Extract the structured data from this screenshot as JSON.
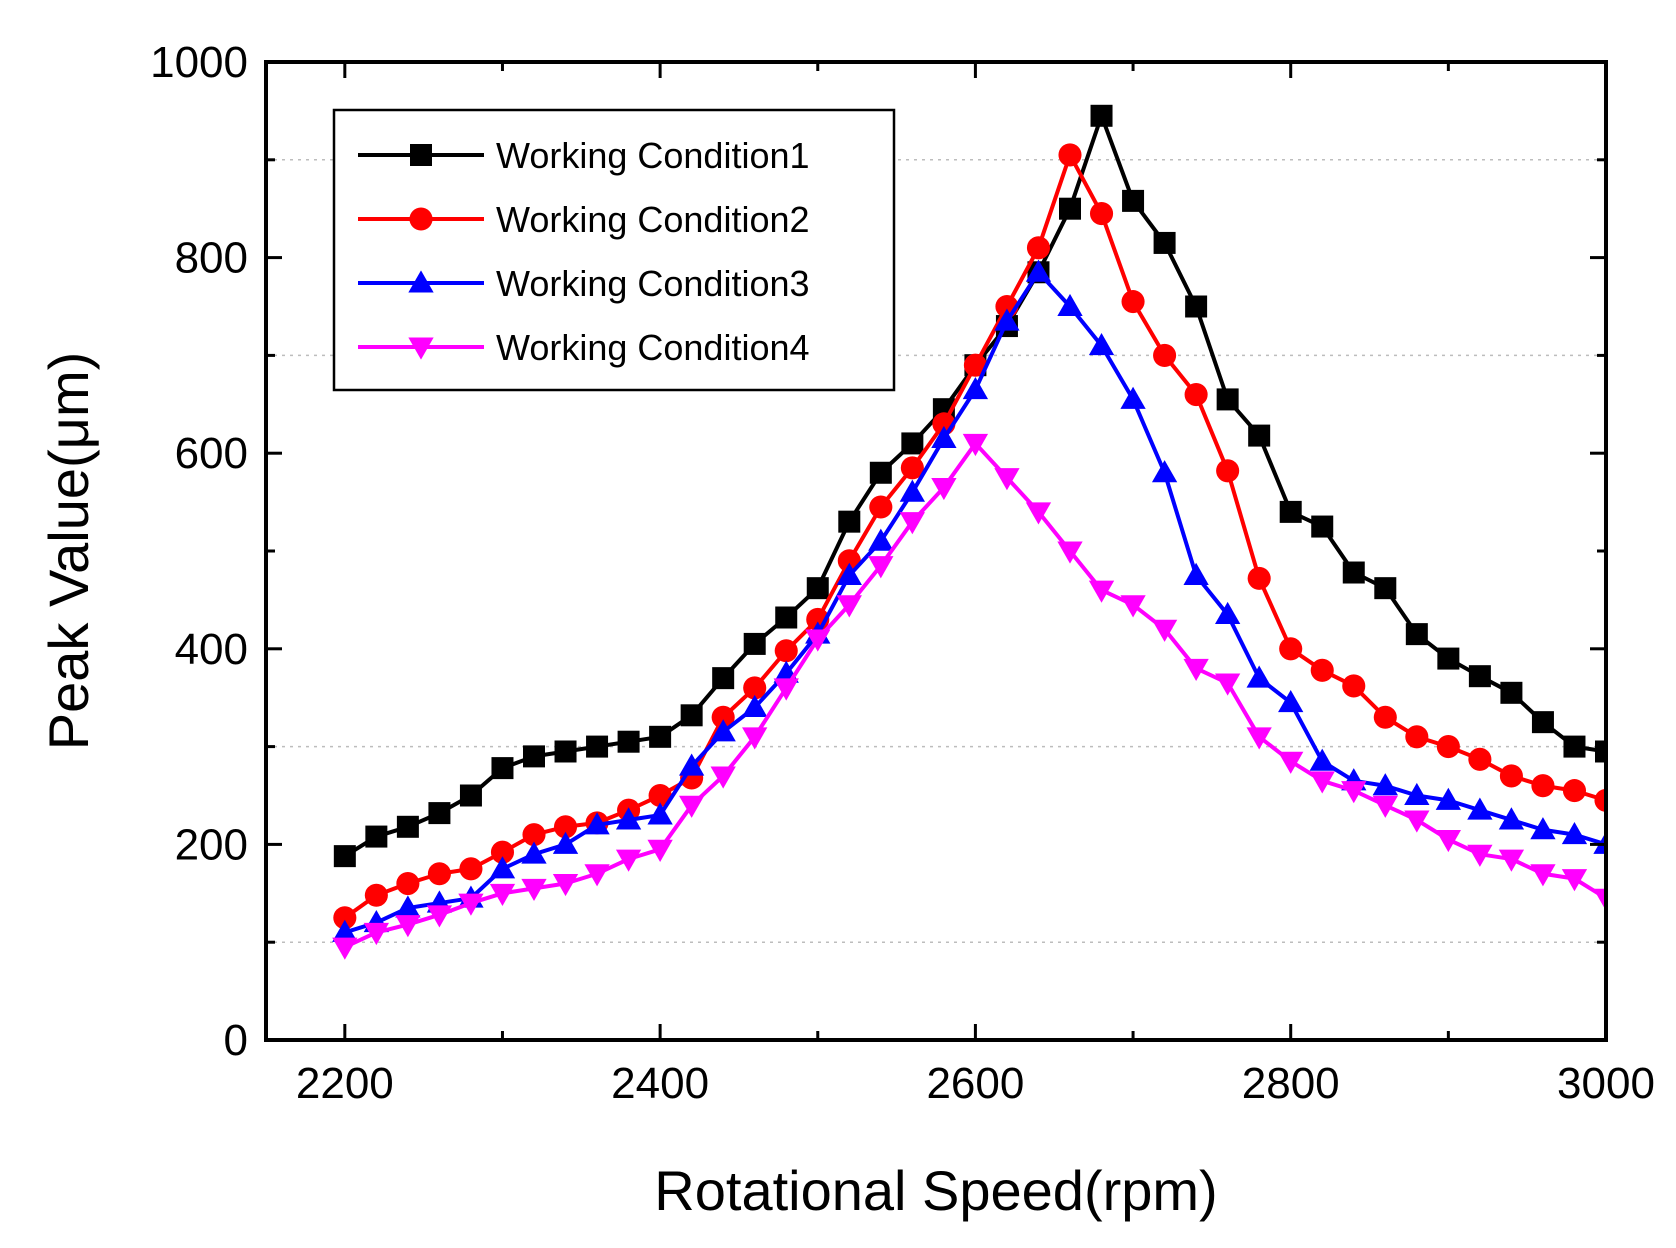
{
  "chart_data": {
    "type": "line",
    "title": "",
    "xlabel": "Rotational Speed(rpm)",
    "ylabel": "Peak Value(μm)",
    "xlim": [
      2150,
      3000
    ],
    "ylim": [
      0,
      1000
    ],
    "xticks": [
      2200,
      2400,
      2600,
      2800,
      3000
    ],
    "yticks": [
      0,
      200,
      400,
      600,
      800,
      1000
    ],
    "x": [
      2200,
      2220,
      2240,
      2260,
      2280,
      2300,
      2320,
      2340,
      2360,
      2380,
      2400,
      2420,
      2440,
      2460,
      2480,
      2500,
      2520,
      2540,
      2560,
      2580,
      2600,
      2620,
      2640,
      2660,
      2680,
      2700,
      2720,
      2740,
      2760,
      2780,
      2800,
      2820,
      2840,
      2860,
      2880,
      2900,
      2920,
      2940,
      2960,
      2980,
      3000
    ],
    "legend_position": "top-left",
    "grid": "dotted horizontal at 100, 300, 700, 900",
    "series": [
      {
        "name": "Working Condition1",
        "color": "#000000",
        "marker": "square",
        "values": [
          188,
          208,
          218,
          232,
          250,
          278,
          290,
          295,
          300,
          305,
          310,
          332,
          370,
          405,
          432,
          462,
          530,
          580,
          610,
          645,
          690,
          730,
          785,
          850,
          945,
          858,
          815,
          750,
          655,
          618,
          540,
          525,
          478,
          462,
          415,
          390,
          372,
          355,
          325,
          300,
          295
        ]
      },
      {
        "name": "Working Condition2",
        "color": "#ff0000",
        "marker": "circle",
        "values": [
          125,
          148,
          160,
          170,
          175,
          192,
          210,
          218,
          222,
          235,
          250,
          268,
          330,
          360,
          398,
          430,
          490,
          545,
          585,
          630,
          690,
          750,
          810,
          905,
          845,
          755,
          700,
          660,
          582,
          472,
          400,
          378,
          362,
          330,
          310,
          300,
          287,
          270,
          260,
          255,
          245
        ]
      },
      {
        "name": "Working Condition3",
        "color": "#0000ff",
        "marker": "triangle-up",
        "values": [
          110,
          120,
          135,
          140,
          145,
          175,
          190,
          200,
          220,
          225,
          230,
          280,
          315,
          340,
          375,
          415,
          475,
          510,
          560,
          615,
          665,
          735,
          785,
          750,
          710,
          655,
          580,
          475,
          435,
          370,
          345,
          285,
          265,
          260,
          250,
          245,
          235,
          225,
          215,
          210,
          200
        ]
      },
      {
        "name": "Working Condition4",
        "color": "#ff00ff",
        "marker": "triangle-down",
        "values": [
          95,
          110,
          118,
          128,
          140,
          150,
          155,
          160,
          170,
          185,
          195,
          240,
          270,
          310,
          360,
          410,
          445,
          485,
          530,
          565,
          610,
          575,
          540,
          500,
          460,
          445,
          420,
          380,
          365,
          310,
          285,
          265,
          255,
          240,
          225,
          205,
          190,
          185,
          170,
          165,
          145
        ]
      }
    ]
  }
}
